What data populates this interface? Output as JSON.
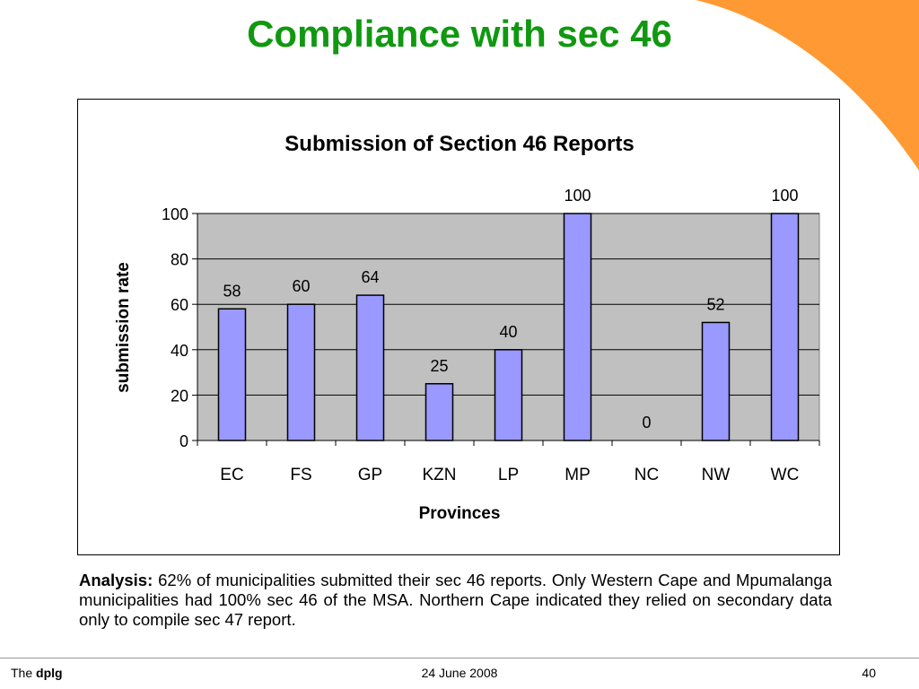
{
  "slide": {
    "title": "Compliance with sec 46",
    "accent_color": "#109810",
    "decoration_color": "#ff9933"
  },
  "analysis": {
    "label": "Analysis:",
    "text": " 62% of municipalities submitted their sec 46 reports. Only Western Cape and Mpumalanga municipalities had 100% sec 46 of the MSA. Northern Cape indicated they relied on secondary data only to compile  sec 47 report."
  },
  "footer": {
    "brand_prefix": "The ",
    "brand_bold": "dplg",
    "date": "24 June 2008",
    "page_number": "40"
  },
  "chart_data": {
    "type": "bar",
    "title": "Submission of Section 46 Reports",
    "xlabel": "Provinces",
    "ylabel": "submission rate",
    "categories": [
      "EC",
      "FS",
      "GP",
      "KZN",
      "LP",
      "MP",
      "NC",
      "NW",
      "WC"
    ],
    "values": [
      58,
      60,
      64,
      25,
      40,
      100,
      0,
      52,
      100
    ],
    "data_labels": [
      "58",
      "60",
      "64",
      "25",
      "40",
      "100",
      "0",
      "52",
      "100"
    ],
    "ylim": [
      0,
      100
    ],
    "yticks": [
      "0",
      "20",
      "40",
      "60",
      "80",
      "100"
    ],
    "grid": true,
    "legend": "none",
    "bar_color": "#9999ff",
    "plot_background": "#c0c0c0"
  }
}
